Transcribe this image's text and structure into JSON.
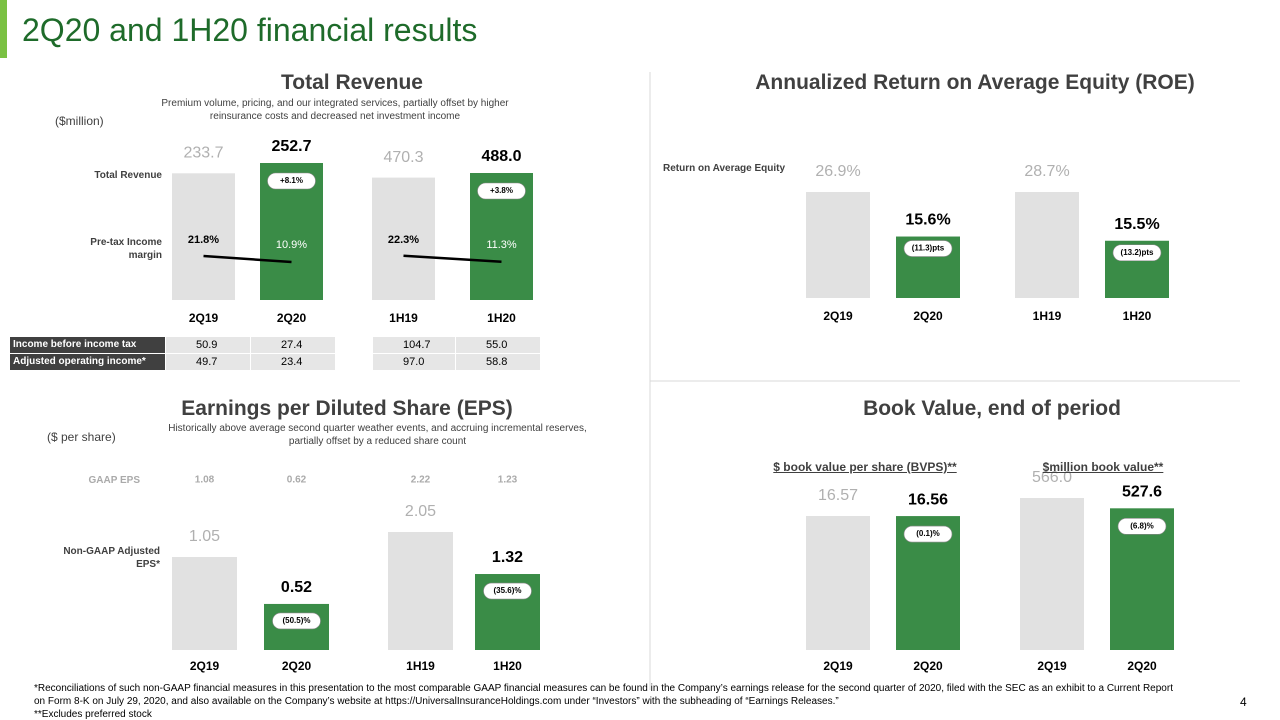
{
  "title": "2Q20 and 1H20 financial results",
  "chart_data": [
    {
      "type": "bar",
      "title": "Total Revenue",
      "subtitle": "Premium volume, pricing, and our integrated services, partially offset by higher reinsurance costs and decreased net investment income",
      "unit": "($million)",
      "row_labels": [
        "Total Revenue",
        "Pre-tax Income margin"
      ],
      "categories": [
        "2Q19",
        "2Q20",
        "1H19",
        "1H20"
      ],
      "values": [
        233.7,
        252.7,
        470.3,
        488.0
      ],
      "value_labels": [
        "233.7",
        "252.7",
        "470.3",
        "488.0"
      ],
      "colors": [
        "#e1e1e1",
        "#3a8c47",
        "#e1e1e1",
        "#3a8c47"
      ],
      "changes": [
        "+8.1%",
        "+3.8%"
      ],
      "margin": {
        "values": [
          21.8,
          10.9,
          22.3,
          11.3
        ],
        "value_labels": [
          "21.8%",
          "10.9%",
          "22.3%",
          "11.3%"
        ]
      }
    },
    {
      "type": "bar",
      "title": "Annualized Return on Average Equity (ROE)",
      "row_labels": [
        "Return on Average Equity"
      ],
      "categories": [
        "2Q19",
        "2Q20",
        "1H19",
        "1H20"
      ],
      "values": [
        26.9,
        15.6,
        28.7,
        15.5
      ],
      "value_labels": [
        "26.9%",
        "15.6%",
        "28.7%",
        "15.5%"
      ],
      "colors": [
        "#e1e1e1",
        "#3a8c47",
        "#e1e1e1",
        "#3a8c47"
      ],
      "changes": [
        "(11.3)pts",
        "(13.2)pts"
      ]
    },
    {
      "type": "bar",
      "title": "Earnings per Diluted Share (EPS)",
      "subtitle": "Historically above average second quarter weather events, and accruing incremental reserves, partially offset by a reduced share count",
      "unit": "($ per share)",
      "row_labels": [
        "Non-GAAP Adjusted EPS*"
      ],
      "gaap": {
        "label": "GAAP EPS",
        "values": [
          1.08,
          0.62,
          2.22,
          1.23
        ]
      },
      "categories": [
        "2Q19",
        "2Q20",
        "1H19",
        "1H20"
      ],
      "values": [
        1.05,
        0.52,
        2.05,
        1.32
      ],
      "value_labels": [
        "1.05",
        "0.52",
        "2.05",
        "1.32"
      ],
      "colors": [
        "#e1e1e1",
        "#3a8c47",
        "#e1e1e1",
        "#3a8c47"
      ],
      "changes": [
        "(50.5)%",
        "(35.6)%"
      ]
    },
    {
      "type": "bar",
      "title": "Book Value, end of period",
      "subheads": [
        "$ book value per share (BVPS)**",
        "$million book value**"
      ],
      "categories": [
        "2Q19",
        "2Q20",
        "2Q19",
        "2Q20"
      ],
      "values": [
        16.57,
        16.56,
        566.0,
        527.6
      ],
      "value_labels": [
        "16.57",
        "16.56",
        "566.0",
        "527.6"
      ],
      "colors": [
        "#e1e1e1",
        "#3a8c47",
        "#e1e1e1",
        "#3a8c47"
      ],
      "changes": [
        "(0.1)%",
        "(6.8)%"
      ]
    }
  ],
  "table": {
    "rows": [
      [
        "Income before income tax",
        "50.9",
        "27.4",
        "104.7",
        "55.0"
      ],
      [
        "Adjusted operating income*",
        "49.7",
        "23.4",
        "97.0",
        "58.8"
      ]
    ]
  },
  "footnotes": [
    "*Reconciliations of such non-GAAP financial measures in this presentation to the most comparable GAAP financial measures can be found in the Company’s earnings release for the second quarter of 2020, filed with the SEC as an exhibit to a Current Report on Form 8-K on July 29, 2020, and also available on the Company’s website at https://UniversalInsuranceHoldings.com under “Investors” with the subheading of “Earnings Releases.”",
    "**Excludes preferred stock"
  ],
  "page_number": "4"
}
